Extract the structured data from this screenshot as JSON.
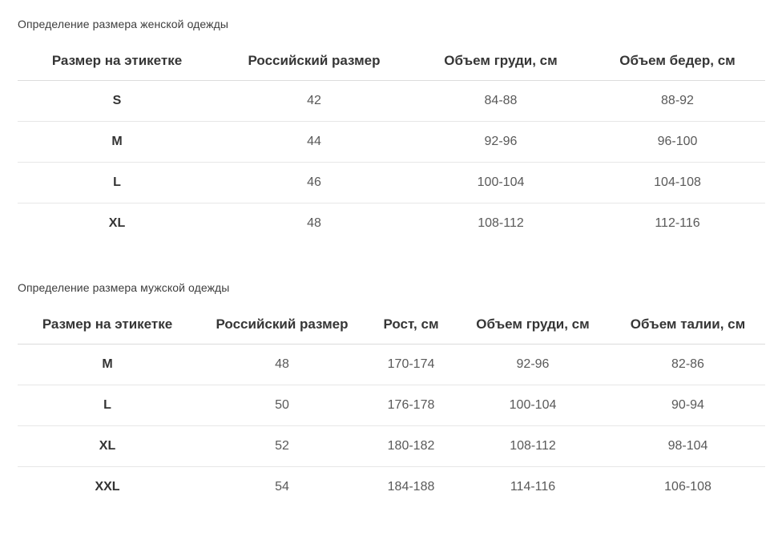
{
  "colors": {
    "page_background": "#ffffff",
    "title_text": "#3d3d3d",
    "header_text": "#363636",
    "label_text": "#333333",
    "value_text": "#595959",
    "row_border": "#e7e7e7",
    "header_border": "#dcdcdc"
  },
  "tables": [
    {
      "title": "Определение размера женской одежды",
      "columns": [
        "Размер на этикетке",
        "Российский размер",
        "Объем груди, см",
        "Объем бедер, см"
      ],
      "rows": [
        [
          "S",
          "42",
          "84-88",
          "88-92"
        ],
        [
          "M",
          "44",
          "92-96",
          "96-100"
        ],
        [
          "L",
          "46",
          "100-104",
          "104-108"
        ],
        [
          "XL",
          "48",
          "108-112",
          "112-116"
        ]
      ]
    },
    {
      "title": "Определение размера мужской одежды",
      "columns": [
        "Размер на этикетке",
        "Российский размер",
        "Рост, см",
        "Объем груди, см",
        "Объем талии, см"
      ],
      "rows": [
        [
          "M",
          "48",
          "170-174",
          "92-96",
          "82-86"
        ],
        [
          "L",
          "50",
          "176-178",
          "100-104",
          "90-94"
        ],
        [
          "XL",
          "52",
          "180-182",
          "108-112",
          "98-104"
        ],
        [
          "XXL",
          "54",
          "184-188",
          "114-116",
          "106-108"
        ]
      ]
    }
  ]
}
